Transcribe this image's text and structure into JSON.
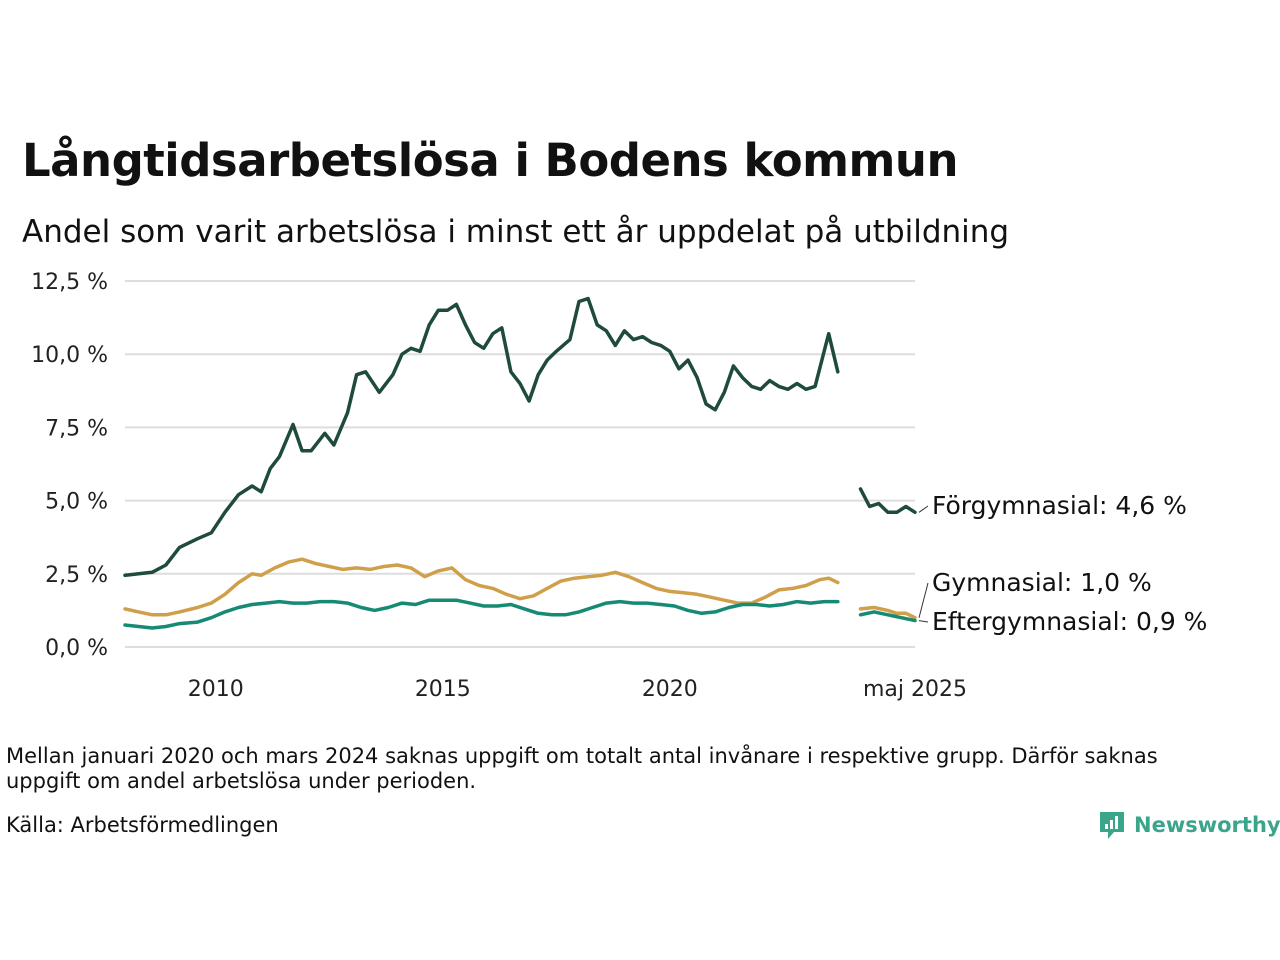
{
  "title": "Långtidsarbetslösa i Bodens kommun",
  "subtitle": "Andel som varit arbetslösa i minst ett år uppdelat på utbildning",
  "note": "Mellan januari 2020 och mars 2024 saknas uppgift om totalt antal invånare i respektive grupp. Därför saknas uppgift om andel arbetslösa under perioden.",
  "source": "Källa: Arbetsförmedlingen",
  "brand": "Newsworthy",
  "colors": {
    "forgymnasial": "#1f4a3e",
    "gymnasial": "#cf9f4a",
    "eftergymnasial": "#178a74",
    "grid": "#dddddd",
    "brand": "#3aa58a"
  },
  "chart_data": {
    "type": "line",
    "title": "Långtidsarbetslösa i Bodens kommun",
    "subtitle": "Andel som varit arbetslösa i minst ett år uppdelat på utbildning",
    "ylim": [
      0,
      12.5
    ],
    "y_ticks": [
      "0,0 %",
      "2,5 %",
      "5,0 %",
      "7,5 %",
      "10,0 %",
      "12,5 %"
    ],
    "x_ticks": [
      "2010",
      "2015",
      "2020",
      "maj 2025"
    ],
    "grid": "horizontal",
    "series": [
      {
        "name": "Förgymnasial",
        "end_label": "Förgymnasial: 4,6 %",
        "color": "#1f4a3e",
        "segments": [
          [
            [
              2008.0,
              2.45
            ],
            [
              2008.3,
              2.5
            ],
            [
              2008.6,
              2.55
            ],
            [
              2008.9,
              2.8
            ],
            [
              2009.2,
              3.4
            ],
            [
              2009.6,
              3.7
            ],
            [
              2009.9,
              3.9
            ],
            [
              2010.2,
              4.6
            ],
            [
              2010.5,
              5.2
            ],
            [
              2010.8,
              5.5
            ],
            [
              2011.0,
              5.3
            ],
            [
              2011.2,
              6.1
            ],
            [
              2011.4,
              6.5
            ],
            [
              2011.7,
              7.6
            ],
            [
              2011.9,
              6.7
            ],
            [
              2012.1,
              6.7
            ],
            [
              2012.4,
              7.3
            ],
            [
              2012.6,
              6.9
            ],
            [
              2012.9,
              8.0
            ],
            [
              2013.1,
              9.3
            ],
            [
              2013.3,
              9.4
            ],
            [
              2013.6,
              8.7
            ],
            [
              2013.9,
              9.3
            ],
            [
              2014.1,
              10.0
            ],
            [
              2014.3,
              10.2
            ],
            [
              2014.5,
              10.1
            ],
            [
              2014.7,
              11.0
            ],
            [
              2014.9,
              11.5
            ],
            [
              2015.1,
              11.5
            ],
            [
              2015.3,
              11.7
            ],
            [
              2015.5,
              11.0
            ],
            [
              2015.7,
              10.4
            ],
            [
              2015.9,
              10.2
            ],
            [
              2016.1,
              10.7
            ],
            [
              2016.3,
              10.9
            ],
            [
              2016.5,
              9.4
            ],
            [
              2016.7,
              9.0
            ],
            [
              2016.9,
              8.4
            ],
            [
              2017.1,
              9.3
            ],
            [
              2017.3,
              9.8
            ],
            [
              2017.5,
              10.1
            ],
            [
              2017.8,
              10.5
            ],
            [
              2018.0,
              11.8
            ],
            [
              2018.2,
              11.9
            ],
            [
              2018.4,
              11.0
            ],
            [
              2018.6,
              10.8
            ],
            [
              2018.8,
              10.3
            ],
            [
              2019.0,
              10.8
            ],
            [
              2019.2,
              10.5
            ],
            [
              2019.4,
              10.6
            ],
            [
              2019.6,
              10.4
            ],
            [
              2019.8,
              10.3
            ],
            [
              2020.0,
              10.1
            ],
            [
              2020.2,
              9.5
            ],
            [
              2020.4,
              9.8
            ],
            [
              2020.6,
              9.2
            ],
            [
              2020.8,
              8.3
            ],
            [
              2021.0,
              8.1
            ],
            [
              2021.2,
              8.7
            ],
            [
              2021.4,
              9.6
            ],
            [
              2021.6,
              9.2
            ],
            [
              2021.8,
              8.9
            ],
            [
              2022.0,
              8.8
            ],
            [
              2022.2,
              9.1
            ],
            [
              2022.4,
              8.9
            ],
            [
              2022.6,
              8.8
            ],
            [
              2022.8,
              9.0
            ],
            [
              2023.0,
              8.8
            ],
            [
              2023.2,
              8.9
            ],
            [
              2023.5,
              10.7
            ],
            [
              2023.7,
              9.4
            ]
          ],
          [
            [
              2024.2,
              5.4
            ],
            [
              2024.4,
              4.8
            ],
            [
              2024.6,
              4.9
            ],
            [
              2024.8,
              4.6
            ],
            [
              2025.0,
              4.6
            ],
            [
              2025.2,
              4.8
            ],
            [
              2025.4,
              4.6
            ]
          ]
        ]
      },
      {
        "name": "Gymnasial",
        "end_label": "Gymnasial: 1,0 %",
        "color": "#cf9f4a",
        "segments": [
          [
            [
              2008.0,
              1.3
            ],
            [
              2008.3,
              1.2
            ],
            [
              2008.6,
              1.1
            ],
            [
              2008.9,
              1.1
            ],
            [
              2009.2,
              1.2
            ],
            [
              2009.6,
              1.35
            ],
            [
              2009.9,
              1.5
            ],
            [
              2010.2,
              1.8
            ],
            [
              2010.5,
              2.2
            ],
            [
              2010.8,
              2.5
            ],
            [
              2011.0,
              2.45
            ],
            [
              2011.3,
              2.7
            ],
            [
              2011.6,
              2.9
            ],
            [
              2011.9,
              3.0
            ],
            [
              2012.2,
              2.85
            ],
            [
              2012.5,
              2.75
            ],
            [
              2012.8,
              2.65
            ],
            [
              2013.1,
              2.7
            ],
            [
              2013.4,
              2.65
            ],
            [
              2013.7,
              2.75
            ],
            [
              2014.0,
              2.8
            ],
            [
              2014.3,
              2.7
            ],
            [
              2014.6,
              2.4
            ],
            [
              2014.9,
              2.6
            ],
            [
              2015.2,
              2.7
            ],
            [
              2015.5,
              2.3
            ],
            [
              2015.8,
              2.1
            ],
            [
              2016.1,
              2.0
            ],
            [
              2016.4,
              1.8
            ],
            [
              2016.7,
              1.65
            ],
            [
              2017.0,
              1.75
            ],
            [
              2017.3,
              2.0
            ],
            [
              2017.6,
              2.25
            ],
            [
              2017.9,
              2.35
            ],
            [
              2018.2,
              2.4
            ],
            [
              2018.5,
              2.45
            ],
            [
              2018.8,
              2.55
            ],
            [
              2019.1,
              2.4
            ],
            [
              2019.4,
              2.2
            ],
            [
              2019.7,
              2.0
            ],
            [
              2020.0,
              1.9
            ],
            [
              2020.3,
              1.85
            ],
            [
              2020.6,
              1.8
            ],
            [
              2020.9,
              1.7
            ],
            [
              2021.2,
              1.6
            ],
            [
              2021.5,
              1.5
            ],
            [
              2021.8,
              1.5
            ],
            [
              2022.1,
              1.7
            ],
            [
              2022.4,
              1.95
            ],
            [
              2022.7,
              2.0
            ],
            [
              2023.0,
              2.1
            ],
            [
              2023.3,
              2.3
            ],
            [
              2023.5,
              2.35
            ],
            [
              2023.7,
              2.2
            ]
          ],
          [
            [
              2024.2,
              1.3
            ],
            [
              2024.5,
              1.35
            ],
            [
              2024.8,
              1.25
            ],
            [
              2025.0,
              1.15
            ],
            [
              2025.2,
              1.15
            ],
            [
              2025.4,
              1.0
            ]
          ]
        ]
      },
      {
        "name": "Eftergymnasial",
        "end_label": "Eftergymnasial: 0,9 %",
        "color": "#178a74",
        "segments": [
          [
            [
              2008.0,
              0.75
            ],
            [
              2008.3,
              0.7
            ],
            [
              2008.6,
              0.65
            ],
            [
              2008.9,
              0.7
            ],
            [
              2009.2,
              0.8
            ],
            [
              2009.6,
              0.85
            ],
            [
              2009.9,
              1.0
            ],
            [
              2010.2,
              1.2
            ],
            [
              2010.5,
              1.35
            ],
            [
              2010.8,
              1.45
            ],
            [
              2011.1,
              1.5
            ],
            [
              2011.4,
              1.55
            ],
            [
              2011.7,
              1.5
            ],
            [
              2012.0,
              1.5
            ],
            [
              2012.3,
              1.55
            ],
            [
              2012.6,
              1.55
            ],
            [
              2012.9,
              1.5
            ],
            [
              2013.2,
              1.35
            ],
            [
              2013.5,
              1.25
            ],
            [
              2013.8,
              1.35
            ],
            [
              2014.1,
              1.5
            ],
            [
              2014.4,
              1.45
            ],
            [
              2014.7,
              1.6
            ],
            [
              2015.0,
              1.6
            ],
            [
              2015.3,
              1.6
            ],
            [
              2015.6,
              1.5
            ],
            [
              2015.9,
              1.4
            ],
            [
              2016.2,
              1.4
            ],
            [
              2016.5,
              1.45
            ],
            [
              2016.8,
              1.3
            ],
            [
              2017.1,
              1.15
            ],
            [
              2017.4,
              1.1
            ],
            [
              2017.7,
              1.1
            ],
            [
              2018.0,
              1.2
            ],
            [
              2018.3,
              1.35
            ],
            [
              2018.6,
              1.5
            ],
            [
              2018.9,
              1.55
            ],
            [
              2019.2,
              1.5
            ],
            [
              2019.5,
              1.5
            ],
            [
              2019.8,
              1.45
            ],
            [
              2020.1,
              1.4
            ],
            [
              2020.4,
              1.25
            ],
            [
              2020.7,
              1.15
            ],
            [
              2021.0,
              1.2
            ],
            [
              2021.3,
              1.35
            ],
            [
              2021.6,
              1.45
            ],
            [
              2021.9,
              1.45
            ],
            [
              2022.2,
              1.4
            ],
            [
              2022.5,
              1.45
            ],
            [
              2022.8,
              1.55
            ],
            [
              2023.1,
              1.5
            ],
            [
              2023.4,
              1.55
            ],
            [
              2023.7,
              1.55
            ]
          ],
          [
            [
              2024.2,
              1.1
            ],
            [
              2024.5,
              1.2
            ],
            [
              2024.8,
              1.1
            ],
            [
              2025.1,
              1.0
            ],
            [
              2025.4,
              0.9
            ]
          ]
        ]
      }
    ]
  }
}
